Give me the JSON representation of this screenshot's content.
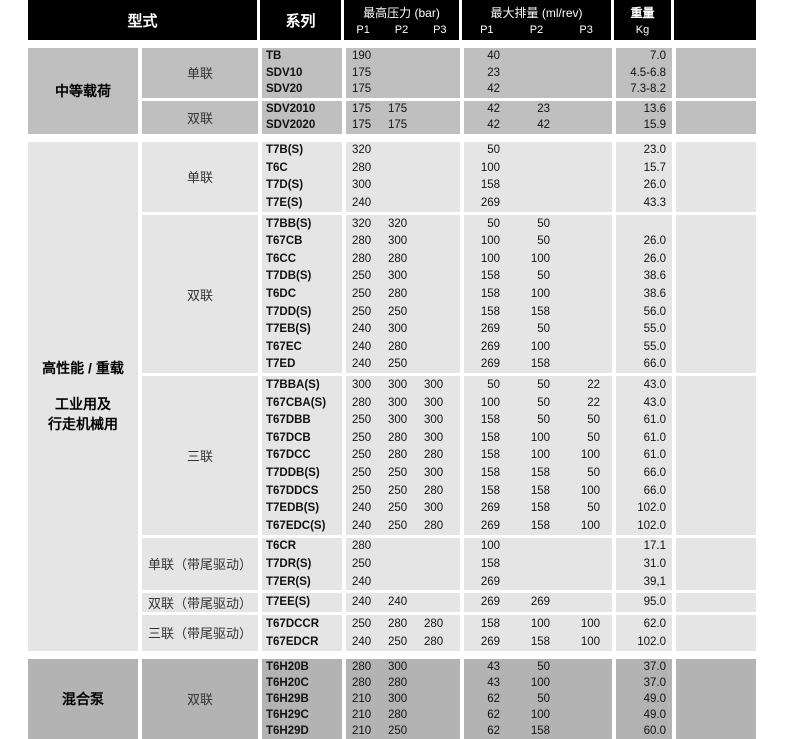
{
  "header": {
    "type": "型式",
    "series": "系列",
    "pressure": "最高压力 (bar)",
    "displacement": "最大排量 (ml/rev)",
    "weight": "重量",
    "weight_unit": "Kg",
    "p1": "P1",
    "p2": "P2",
    "p3": "P3"
  },
  "colors": {
    "header_bg": "#000000",
    "medium_bg": "#bfbfbf",
    "heavy_bg": "#e5e5e5",
    "hybrid_bg": "#b3b3b3"
  },
  "sections": [
    {
      "labels": [
        "中等载荷"
      ],
      "groups": [
        {
          "label": "单联",
          "rows": [
            [
              "TB",
              "190",
              "",
              "",
              "40",
              "",
              "",
              "7.0"
            ],
            [
              "SDV10",
              "175",
              "",
              "",
              "23",
              "",
              "",
              "4.5-6.8"
            ],
            [
              "SDV20",
              "175",
              "",
              "",
              "42",
              "",
              "",
              "7.3-8.2"
            ]
          ]
        },
        {
          "label": "双联",
          "rows": [
            [
              "SDV2010",
              "175",
              "175",
              "",
              "42",
              "23",
              "",
              "13.6"
            ],
            [
              "SDV2020",
              "175",
              "175",
              "",
              "42",
              "42",
              "",
              "15.9"
            ]
          ]
        }
      ]
    },
    {
      "labels": [
        "高性能 / 重载",
        "",
        "工业用及",
        "行走机械用"
      ],
      "groups": [
        {
          "label": "单联",
          "rows": [
            [
              "T7B(S)",
              "320",
              "",
              "",
              "50",
              "",
              "",
              "23.0"
            ],
            [
              "T6C",
              "280",
              "",
              "",
              "100",
              "",
              "",
              "15.7"
            ],
            [
              "T7D(S)",
              "300",
              "",
              "",
              "158",
              "",
              "",
              "26.0"
            ],
            [
              "T7E(S)",
              "240",
              "",
              "",
              "269",
              "",
              "",
              "43.3"
            ]
          ]
        },
        {
          "label": "双联",
          "rows": [
            [
              "T7BB(S)",
              "320",
              "320",
              "",
              "50",
              "50",
              "",
              ""
            ],
            [
              "T67CB",
              "280",
              "300",
              "",
              "100",
              "50",
              "",
              "26.0"
            ],
            [
              "T6CC",
              "280",
              "280",
              "",
              "100",
              "100",
              "",
              "26.0"
            ],
            [
              "T7DB(S)",
              "250",
              "300",
              "",
              "158",
              "50",
              "",
              "38.6"
            ],
            [
              "T6DC",
              "250",
              "280",
              "",
              "158",
              "100",
              "",
              "38.6"
            ],
            [
              "T7DD(S)",
              "250",
              "250",
              "",
              "158",
              "158",
              "",
              "56.0"
            ],
            [
              "T7EB(S)",
              "240",
              "300",
              "",
              "269",
              "50",
              "",
              "55.0"
            ],
            [
              "T67EC",
              "240",
              "280",
              "",
              "269",
              "100",
              "",
              "55.0"
            ],
            [
              "T7ED",
              "240",
              "250",
              "",
              "269",
              "158",
              "",
              "66.0"
            ]
          ]
        },
        {
          "label": "三联",
          "rows": [
            [
              "T7BBA(S)",
              "300",
              "300",
              "300",
              "50",
              "50",
              "22",
              "43.0"
            ],
            [
              "T67CBA(S)",
              "280",
              "300",
              "300",
              "100",
              "50",
              "22",
              "43.0"
            ],
            [
              "T67DBB",
              "250",
              "300",
              "300",
              "158",
              "50",
              "50",
              "61.0"
            ],
            [
              "T67DCB",
              "250",
              "280",
              "300",
              "158",
              "100",
              "50",
              "61.0"
            ],
            [
              "T67DCC",
              "250",
              "280",
              "280",
              "158",
              "100",
              "100",
              "61.0"
            ],
            [
              "T7DDB(S)",
              "250",
              "250",
              "300",
              "158",
              "158",
              "50",
              "66.0"
            ],
            [
              "T67DDCS",
              "250",
              "250",
              "280",
              "158",
              "158",
              "100",
              "66.0"
            ],
            [
              "T7EDB(S)",
              "240",
              "250",
              "300",
              "269",
              "158",
              "50",
              "102.0"
            ],
            [
              "T67EDC(S)",
              "240",
              "250",
              "280",
              "269",
              "158",
              "100",
              "102.0"
            ]
          ]
        },
        {
          "label": "单联（带尾驱动）",
          "rows": [
            [
              "T6CR",
              "280",
              "",
              "",
              "100",
              "",
              "",
              "17.1"
            ],
            [
              "T7DR(S)",
              "250",
              "",
              "",
              "158",
              "",
              "",
              "31.0"
            ],
            [
              "T7ER(S)",
              "240",
              "",
              "",
              "269",
              "",
              "",
              "39,1"
            ]
          ]
        },
        {
          "label": "双联（带尾驱动）",
          "rows": [
            [
              "T7EE(S)",
              "240",
              "240",
              "",
              "269",
              "269",
              "",
              "95.0"
            ]
          ]
        },
        {
          "label": "三联（带尾驱动）",
          "rows": [
            [
              "T67DCCR",
              "250",
              "280",
              "280",
              "158",
              "100",
              "100",
              "62.0"
            ],
            [
              "T67EDCR",
              "240",
              "250",
              "280",
              "269",
              "158",
              "100",
              "102.0"
            ]
          ]
        }
      ]
    },
    {
      "labels": [
        "混合泵"
      ],
      "groups": [
        {
          "label": "双联",
          "rows": [
            [
              "T6H20B",
              "280",
              "300",
              "",
              "43",
              "50",
              "",
              "37.0"
            ],
            [
              "T6H20C",
              "280",
              "280",
              "",
              "43",
              "100",
              "",
              "37.0"
            ],
            [
              "T6H29B",
              "210",
              "300",
              "",
              "62",
              "50",
              "",
              "49.0"
            ],
            [
              "T6H29C",
              "210",
              "280",
              "",
              "62",
              "100",
              "",
              "49.0"
            ],
            [
              "T6H29D",
              "210",
              "250",
              "",
              "62",
              "158",
              "",
              "60.0"
            ]
          ]
        }
      ]
    }
  ]
}
